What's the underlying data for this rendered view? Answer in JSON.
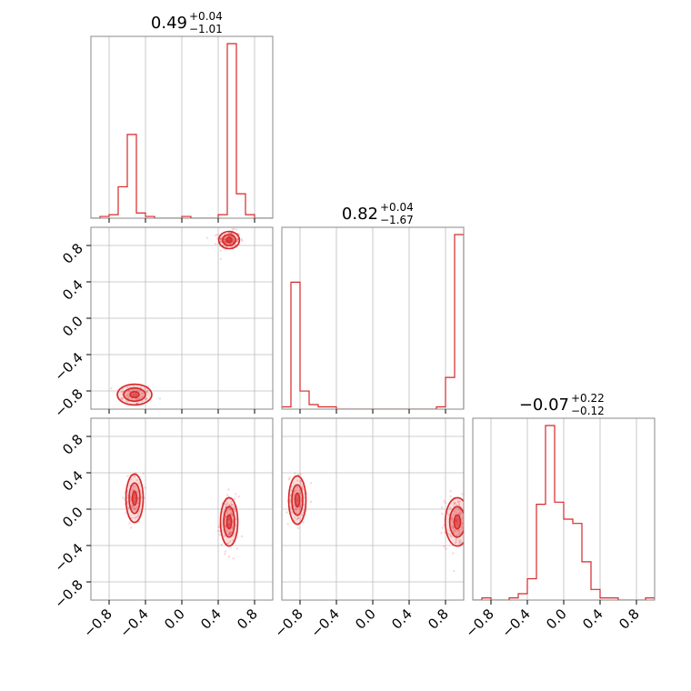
{
  "chart_data": {
    "type": "corner",
    "color": "#d62728",
    "axis_range": [
      -1,
      1
    ],
    "ticks": [
      -0.8,
      -0.4,
      0.0,
      0.4,
      0.8
    ],
    "tick_labels": [
      "−0.8",
      "−0.4",
      "0.0",
      "0.4",
      "0.8"
    ],
    "titles": [
      {
        "value": "0.49",
        "plus": "+0.04",
        "minus": "−1.01"
      },
      {
        "value": "0.82",
        "plus": "+0.04",
        "minus": "−1.67"
      },
      {
        "value": "−0.07",
        "plus": "+0.22",
        "minus": "−0.12"
      }
    ],
    "histograms": [
      {
        "bin_edges": [
          -1.0,
          -0.9,
          -0.8,
          -0.7,
          -0.6,
          -0.5,
          -0.4,
          -0.3,
          -0.2,
          -0.1,
          0.0,
          0.1,
          0.2,
          0.3,
          0.4,
          0.5,
          0.6,
          0.7,
          0.8,
          0.9,
          1.0
        ],
        "counts": [
          0,
          0.01,
          0.02,
          0.18,
          0.48,
          0.03,
          0.01,
          0,
          0,
          0,
          0.01,
          0,
          0,
          0,
          0.02,
          1.0,
          0.14,
          0.02,
          0,
          0
        ]
      },
      {
        "bin_edges": [
          -1.0,
          -0.9,
          -0.8,
          -0.7,
          -0.6,
          -0.5,
          -0.4,
          -0.3,
          -0.2,
          -0.1,
          0.0,
          0.1,
          0.2,
          0.3,
          0.4,
          0.5,
          0.6,
          0.7,
          0.8,
          0.9,
          1.0
        ],
        "counts": [
          0.01,
          0.56,
          0.08,
          0.02,
          0.01,
          0.01,
          0,
          0,
          0,
          0,
          0,
          0,
          0,
          0,
          0,
          0,
          0,
          0.01,
          0.14,
          0.77
        ]
      },
      {
        "bin_edges": [
          -1.0,
          -0.9,
          -0.8,
          -0.7,
          -0.6,
          -0.5,
          -0.4,
          -0.3,
          -0.2,
          -0.1,
          0.0,
          0.1,
          0.2,
          0.3,
          0.4,
          0.5,
          0.6,
          0.7,
          0.8,
          0.9,
          1.0
        ],
        "counts": [
          0,
          0.01,
          0,
          0,
          0.01,
          0.03,
          0.1,
          0.45,
          0.82,
          0.46,
          0.38,
          0.36,
          0.18,
          0.05,
          0.01,
          0.01,
          0,
          0,
          0,
          0.01
        ]
      }
    ],
    "scatter_pairs": [
      {
        "x_param": 0,
        "y_param": 1,
        "clusters": [
          {
            "center": [
              -0.52,
              -0.84
            ],
            "spread": [
              0.1,
              0.06
            ],
            "weight": 0.35
          },
          {
            "center": [
              0.52,
              0.86
            ],
            "spread": [
              0.06,
              0.05
            ],
            "weight": 0.65
          }
        ]
      },
      {
        "x_param": 0,
        "y_param": 2,
        "clusters": [
          {
            "center": [
              -0.52,
              0.12
            ],
            "spread": [
              0.05,
              0.14
            ],
            "weight": 0.35
          },
          {
            "center": [
              0.52,
              -0.14
            ],
            "spread": [
              0.05,
              0.14
            ],
            "weight": 0.65
          }
        ]
      },
      {
        "x_param": 1,
        "y_param": 2,
        "clusters": [
          {
            "center": [
              -0.83,
              0.1
            ],
            "spread": [
              0.05,
              0.14
            ],
            "weight": 0.4
          },
          {
            "center": [
              0.93,
              -0.14
            ],
            "spread": [
              0.07,
              0.14
            ],
            "weight": 0.6
          }
        ]
      }
    ]
  }
}
